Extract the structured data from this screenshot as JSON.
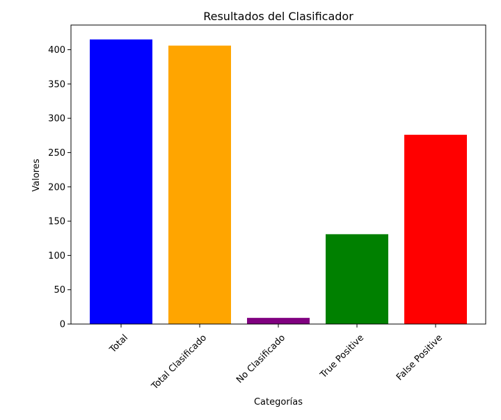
{
  "chart_data": {
    "type": "bar",
    "title": "Resultados del Clasificador",
    "xlabel": "Categorías",
    "ylabel": "Valores",
    "categories": [
      "Total",
      "Total Clasificado",
      "No Clasificado",
      "True Positive",
      "False Positive"
    ],
    "values": [
      415,
      406,
      9,
      131,
      276
    ],
    "colors": [
      "#0000ff",
      "#ffa500",
      "#800080",
      "#008000",
      "#ff0000"
    ],
    "ylim": [
      0,
      436
    ],
    "yticks": [
      0,
      50,
      100,
      150,
      200,
      250,
      300,
      350,
      400
    ],
    "x_tick_rotation_deg": 45,
    "grid": false,
    "legend": "none"
  }
}
